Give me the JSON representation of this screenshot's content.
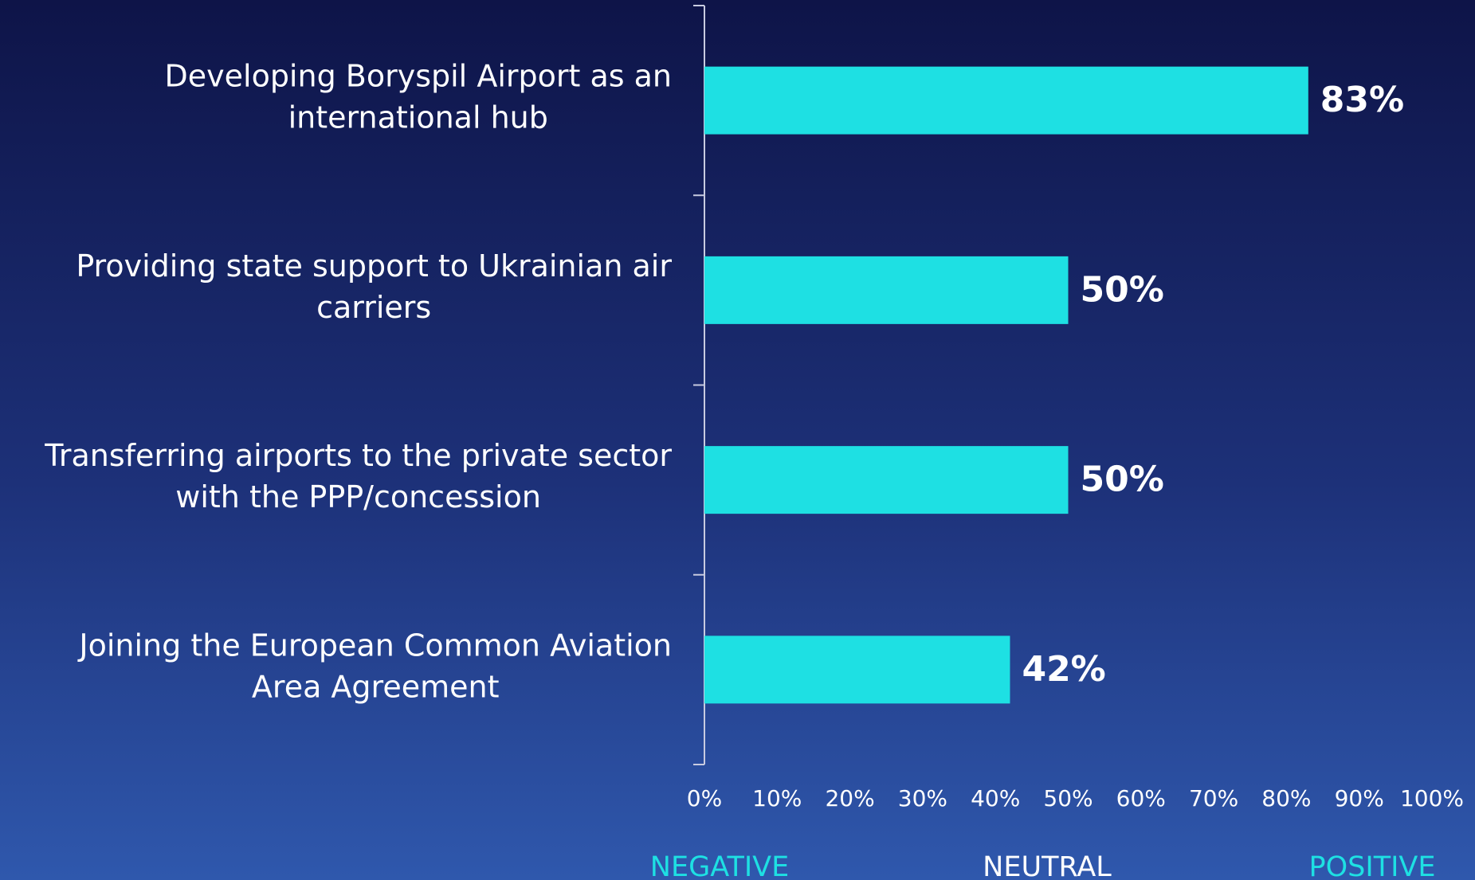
{
  "chart_data": {
    "type": "barh",
    "categories": [
      [
        "Developing Boryspil Airport as an",
        "international hub"
      ],
      [
        "Providing state support to Ukrainian air",
        "carriers"
      ],
      [
        "Transferring airports to the private sector",
        "with the PPP/concession"
      ],
      [
        "Joining the European Common Aviation",
        "Area Agreement"
      ]
    ],
    "values": [
      83,
      50,
      50,
      42
    ],
    "value_labels": [
      "83%",
      "50%",
      "50%",
      "42%"
    ],
    "color": "#1ee0e3",
    "xlim": [
      0,
      100
    ],
    "xticks": [
      {
        "value": 0,
        "label": "0%"
      },
      {
        "value": 10,
        "label": "10%"
      },
      {
        "value": 20,
        "label": "20%"
      },
      {
        "value": 30,
        "label": "30%"
      },
      {
        "value": 40,
        "label": "40%"
      },
      {
        "value": 50,
        "label": "50%"
      },
      {
        "value": 60,
        "label": "60%"
      },
      {
        "value": 70,
        "label": "70%"
      },
      {
        "value": 80,
        "label": "80%"
      },
      {
        "value": 90,
        "label": "90%"
      },
      {
        "value": 100,
        "label": "100%"
      }
    ],
    "grid": false,
    "annotations": [
      {
        "text": "NEGATIVE",
        "color": "#1ee0e3"
      },
      {
        "text": "NEUTRAL",
        "color": "#ffffff"
      },
      {
        "text": "POSITIVE",
        "color": "#1ee0e3"
      }
    ]
  }
}
